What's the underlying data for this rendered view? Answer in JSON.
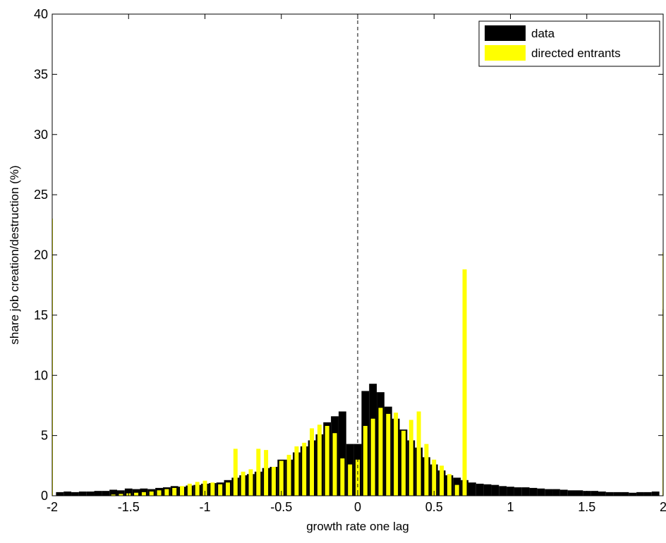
{
  "chart_data": {
    "type": "bar",
    "xlabel": "growth rate one lag",
    "ylabel": "share job creation/destruction (%)",
    "xlim": [
      -2,
      2
    ],
    "ylim": [
      0,
      40
    ],
    "xticks": [
      -2,
      -1.5,
      -1,
      -0.5,
      0,
      0.5,
      1,
      1.5,
      2
    ],
    "yticks": [
      0,
      5,
      10,
      15,
      20,
      25,
      30,
      35,
      40
    ],
    "grid": false,
    "legend_position": "top-right",
    "reference_line": {
      "x": 0,
      "style": "dashed"
    },
    "bin_width": 0.05,
    "series": [
      {
        "name": "data",
        "color": "#000000",
        "x": [
          -2.0,
          -1.95,
          -1.9,
          -1.85,
          -1.8,
          -1.75,
          -1.7,
          -1.65,
          -1.6,
          -1.55,
          -1.5,
          -1.45,
          -1.4,
          -1.35,
          -1.3,
          -1.25,
          -1.2,
          -1.15,
          -1.1,
          -1.05,
          -1.0,
          -0.95,
          -0.9,
          -0.85,
          -0.8,
          -0.75,
          -0.7,
          -0.65,
          -0.6,
          -0.55,
          -0.5,
          -0.45,
          -0.4,
          -0.35,
          -0.3,
          -0.25,
          -0.2,
          -0.15,
          -0.1,
          -0.05,
          0.0,
          0.05,
          0.1,
          0.15,
          0.2,
          0.25,
          0.3,
          0.35,
          0.4,
          0.45,
          0.5,
          0.55,
          0.6,
          0.65,
          0.7,
          0.75,
          0.8,
          0.85,
          0.9,
          0.95,
          1.0,
          1.05,
          1.1,
          1.15,
          1.2,
          1.25,
          1.3,
          1.35,
          1.4,
          1.45,
          1.5,
          1.55,
          1.6,
          1.65,
          1.7,
          1.75,
          1.8,
          1.85,
          1.9,
          1.95,
          2.0
        ],
        "values": [
          23.0,
          0.3,
          0.35,
          0.3,
          0.35,
          0.35,
          0.4,
          0.4,
          0.5,
          0.45,
          0.6,
          0.55,
          0.6,
          0.55,
          0.65,
          0.7,
          0.8,
          0.75,
          0.85,
          0.9,
          1.0,
          1.05,
          1.1,
          1.3,
          1.5,
          1.7,
          1.8,
          2.0,
          2.3,
          2.4,
          3.0,
          3.0,
          3.6,
          4.1,
          4.6,
          5.1,
          6.1,
          6.6,
          7.0,
          4.3,
          4.3,
          8.7,
          9.3,
          8.6,
          7.4,
          6.4,
          5.5,
          4.6,
          4.0,
          3.2,
          2.6,
          2.1,
          1.7,
          1.5,
          1.3,
          1.1,
          1.0,
          0.95,
          0.9,
          0.8,
          0.75,
          0.7,
          0.7,
          0.65,
          0.6,
          0.55,
          0.55,
          0.5,
          0.45,
          0.45,
          0.4,
          0.4,
          0.35,
          0.3,
          0.3,
          0.3,
          0.25,
          0.3,
          0.3,
          0.35,
          15.5
        ]
      },
      {
        "name": "directed entrants",
        "color": "#ffff00",
        "x": [
          -2.0,
          -1.95,
          -1.9,
          -1.85,
          -1.8,
          -1.75,
          -1.7,
          -1.65,
          -1.6,
          -1.55,
          -1.5,
          -1.45,
          -1.4,
          -1.35,
          -1.3,
          -1.25,
          -1.2,
          -1.15,
          -1.1,
          -1.05,
          -1.0,
          -0.95,
          -0.9,
          -0.85,
          -0.8,
          -0.75,
          -0.7,
          -0.65,
          -0.6,
          -0.55,
          -0.5,
          -0.45,
          -0.4,
          -0.35,
          -0.3,
          -0.25,
          -0.2,
          -0.15,
          -0.1,
          -0.05,
          0.0,
          0.05,
          0.1,
          0.15,
          0.2,
          0.25,
          0.3,
          0.35,
          0.4,
          0.45,
          0.5,
          0.55,
          0.6,
          0.65,
          0.7,
          0.75,
          0.8,
          0.85,
          0.9,
          0.95,
          1.0,
          1.05,
          1.1,
          1.15,
          1.2,
          1.25,
          1.3,
          1.35,
          1.4,
          1.45,
          1.5,
          1.55,
          1.6,
          1.65,
          1.7,
          1.75,
          1.8,
          1.85,
          1.9,
          1.95,
          2.0
        ],
        "values": [
          23.0,
          0.0,
          0.0,
          0.0,
          0.0,
          0.0,
          0.0,
          0.0,
          0.1,
          0.15,
          0.2,
          0.25,
          0.3,
          0.35,
          0.45,
          0.55,
          0.65,
          0.8,
          1.0,
          1.15,
          1.25,
          1.1,
          0.95,
          1.1,
          3.9,
          2.0,
          2.2,
          3.9,
          3.8,
          2.4,
          2.9,
          3.4,
          4.1,
          4.4,
          5.6,
          5.9,
          5.8,
          5.2,
          3.1,
          2.6,
          3.0,
          5.8,
          6.4,
          7.3,
          6.8,
          6.9,
          5.4,
          6.3,
          7.0,
          4.3,
          3.0,
          2.5,
          1.8,
          0.9,
          18.8,
          0.0,
          0.0,
          0.0,
          0.0,
          0.0,
          0.0,
          0.0,
          0.0,
          0.0,
          0.0,
          0.0,
          0.0,
          0.0,
          0.0,
          0.0,
          0.0,
          0.0,
          0.0,
          0.0,
          0.0,
          0.0,
          0.0,
          0.0,
          0.0,
          0.0,
          20.2
        ]
      }
    ]
  }
}
